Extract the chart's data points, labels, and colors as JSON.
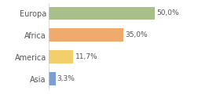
{
  "categories": [
    "Asia",
    "America",
    "Africa",
    "Europa"
  ],
  "values": [
    3.3,
    11.7,
    35.0,
    50.0
  ],
  "labels": [
    "3,3%",
    "11,7%",
    "35,0%",
    "50,0%"
  ],
  "bar_colors": [
    "#7b9fd4",
    "#f2cf6b",
    "#f0aa6e",
    "#a8bf8a"
  ],
  "background_color": "#ffffff",
  "xlim": [
    0,
    68
  ],
  "bar_height": 0.6
}
